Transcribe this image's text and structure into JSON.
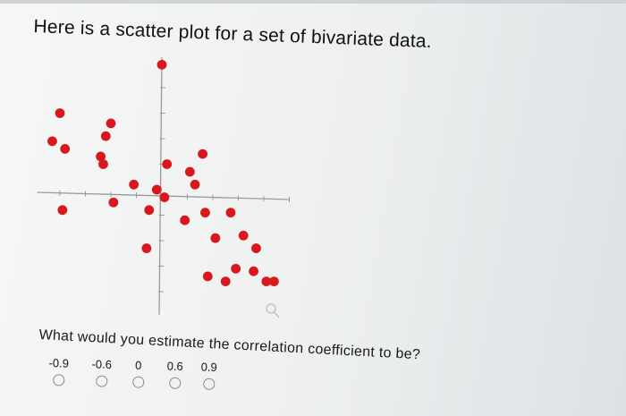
{
  "question": {
    "title": "Here is a scatter plot for a set of bivariate data.",
    "prompt": "What would you estimate the correlation coefficient to be?"
  },
  "choices": [
    {
      "label": "-0.9",
      "selected": false
    },
    {
      "label": "-0.6",
      "selected": false
    },
    {
      "label": "0",
      "selected": false
    },
    {
      "label": "0.6",
      "selected": false
    },
    {
      "label": "0.9",
      "selected": false
    }
  ],
  "chart_data": {
    "type": "scatter",
    "title": "",
    "xlabel": "",
    "ylabel": "",
    "xlim": [
      -5,
      5
    ],
    "ylim": [
      -5,
      5
    ],
    "grid": false,
    "axes_through_origin": true,
    "tick_labels": false,
    "point_color": "#d8181c",
    "x": [
      0,
      -4,
      -2,
      -2.2,
      -4.3,
      -3.8,
      -2.4,
      -2.3,
      -1.1,
      -0.2,
      0.2,
      1.6,
      1.1,
      1.3,
      0.1,
      -1.9,
      -3.9,
      -0.5,
      0.9,
      1.7,
      2.7,
      3.2,
      2.1,
      3.7,
      -0.6,
      2.9,
      3.6,
      1.8,
      2.5,
      4.1,
      4.4
    ],
    "y": [
      4.9,
      3,
      2.6,
      2.1,
      1.9,
      1.6,
      1.3,
      1,
      0.2,
      0,
      1,
      1.4,
      0.7,
      0.2,
      -0.3,
      -0.5,
      -0.8,
      -0.8,
      -1.2,
      -0.9,
      -0.9,
      -1.8,
      -1.9,
      -2.3,
      -2.3,
      -3.1,
      -3.2,
      -3.4,
      -3.6,
      -3.6,
      -3.6
    ]
  },
  "colors": {
    "point": "#d8181c",
    "axis": "#9a9a9a",
    "radio_border": "#8c8c8c"
  },
  "icons": {
    "cursor": "magnifier-cursor-icon"
  }
}
